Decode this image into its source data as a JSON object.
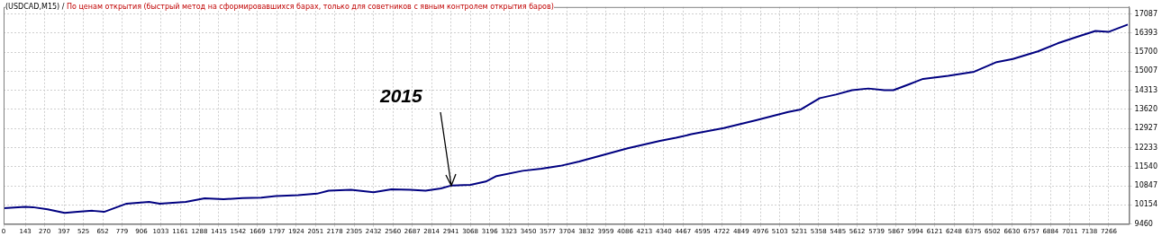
{
  "chart_data": {
    "type": "line",
    "title": "(USDCAD,M15) /",
    "subtitle": "По ценам открытия (быстрый метод на сформировавшихся барах, только для советников с явным контролем открытия баров)",
    "x": [
      0,
      142,
      192,
      289,
      401,
      487,
      584,
      661,
      809,
      956,
      1027,
      1198,
      1322,
      1446,
      1570,
      1694,
      1789,
      1936,
      2060,
      2137,
      2284,
      2432,
      2550,
      2674,
      2774,
      2875,
      2946,
      3070,
      3170,
      3241,
      3412,
      3536,
      3660,
      3784,
      4103,
      4315,
      4421,
      4522,
      4734,
      4947,
      5159,
      5242,
      5366,
      5472,
      5578,
      5685,
      5791,
      5850,
      5956,
      6045,
      6210,
      6381,
      6529,
      6635,
      6800,
      6930,
      7054,
      7178,
      7267,
      7391
    ],
    "series": [
      {
        "color": "#000080",
        "values": [
          10030,
          10080,
          10070,
          9990,
          9860,
          9900,
          9940,
          9900,
          10200,
          10260,
          10200,
          10260,
          10390,
          10360,
          10400,
          10420,
          10470,
          10510,
          10560,
          10670,
          10700,
          10610,
          10720,
          10700,
          10670,
          10750,
          10860,
          10880,
          11000,
          11200,
          11390,
          11470,
          11570,
          11730,
          12210,
          12480,
          12590,
          12720,
          12940,
          13230,
          13530,
          13620,
          14030,
          14160,
          14320,
          14380,
          14320,
          14320,
          14540,
          14730,
          14840,
          14990,
          15340,
          15450,
          15730,
          16020,
          16250,
          16470,
          16440,
          16700
        ]
      }
    ],
    "xlim": [
      0,
      7400
    ],
    "xticks": [
      0,
      143,
      270,
      397,
      525,
      652,
      779,
      906,
      1033,
      1161,
      1288,
      1415,
      1542,
      1669,
      1797,
      1924,
      2051,
      2178,
      2305,
      2432,
      2560,
      2687,
      2814,
      2941,
      3068,
      3196,
      3323,
      3450,
      3577,
      3704,
      3832,
      3959,
      4086,
      4213,
      4340,
      4467,
      4595,
      4722,
      4849,
      4976,
      5103,
      5231,
      5358,
      5485,
      5612,
      5739,
      5867,
      5994,
      6121,
      6248,
      6375,
      6502,
      6630,
      6757,
      6884,
      7011,
      7138,
      7266
    ],
    "ylim": [
      9460,
      17340
    ],
    "yticks": [
      9460,
      10154,
      10847,
      11540,
      12233,
      12927,
      13620,
      14313,
      15007,
      15700,
      16393,
      17087
    ],
    "grid": true,
    "legend": false,
    "marker": "none",
    "line_style": "solid",
    "annotations": [
      {
        "text": "2015",
        "x": 2946,
        "y": 10860
      }
    ]
  }
}
